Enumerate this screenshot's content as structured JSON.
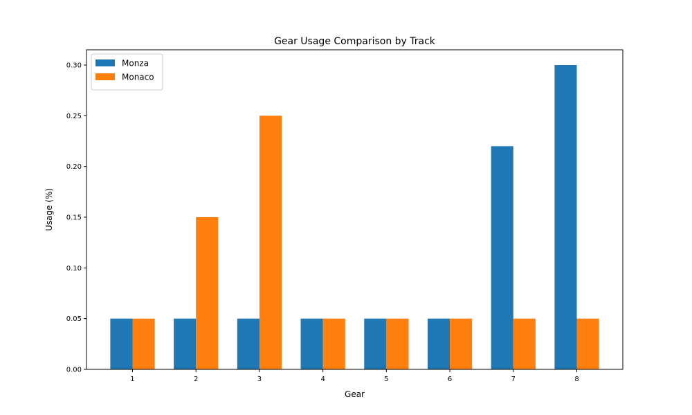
{
  "chart_data": {
    "type": "bar",
    "title": "Gear Usage Comparison by Track",
    "xlabel": "Gear",
    "ylabel": "Usage (%)",
    "categories": [
      "1",
      "2",
      "3",
      "4",
      "5",
      "6",
      "7",
      "8"
    ],
    "series": [
      {
        "name": "Monza",
        "color": "#1f77b4",
        "values": [
          0.05,
          0.05,
          0.05,
          0.05,
          0.05,
          0.05,
          0.22,
          0.3
        ]
      },
      {
        "name": "Monaco",
        "color": "#ff7f0e",
        "values": [
          0.05,
          0.15,
          0.25,
          0.05,
          0.05,
          0.05,
          0.05,
          0.05
        ]
      }
    ],
    "ylim": [
      0,
      0.315
    ],
    "yticks": [
      "0.00",
      "0.05",
      "0.10",
      "0.15",
      "0.20",
      "0.25",
      "0.30"
    ],
    "grid": false,
    "legend_position": "top-left"
  }
}
